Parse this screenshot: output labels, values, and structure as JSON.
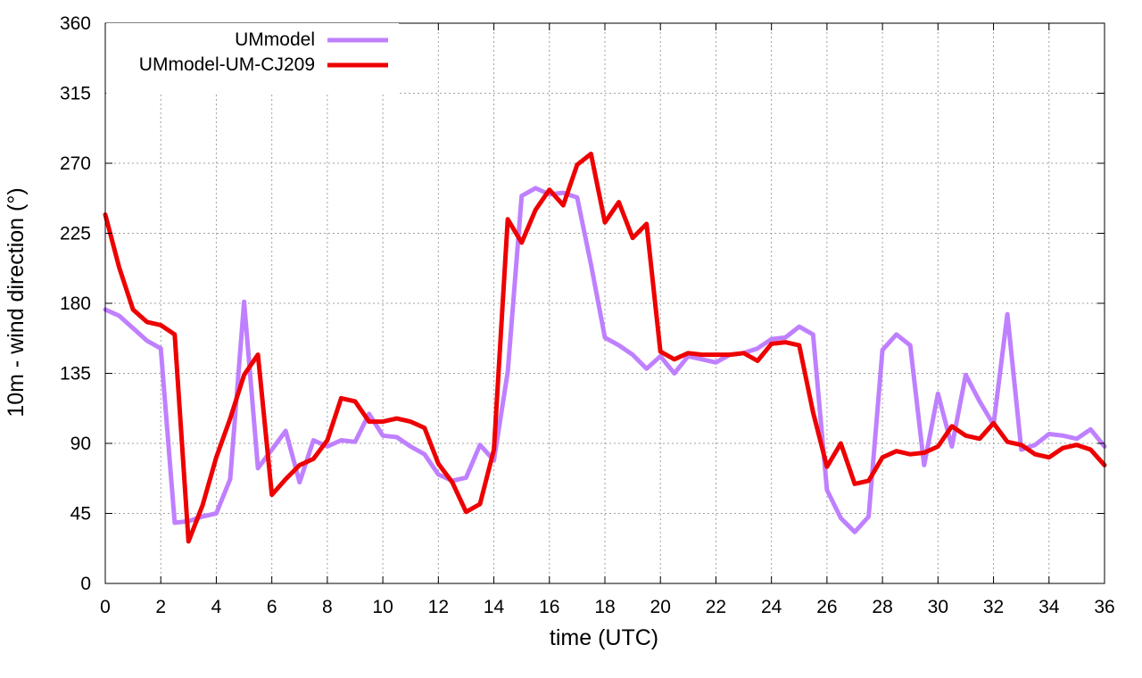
{
  "chart_data": {
    "type": "line",
    "title": "",
    "xlabel": "time (UTC)",
    "ylabel": "10m - wind direction (°)",
    "xlim": [
      0,
      36
    ],
    "ylim": [
      0,
      360
    ],
    "xticks": [
      0,
      2,
      4,
      6,
      8,
      10,
      12,
      14,
      16,
      18,
      20,
      22,
      24,
      26,
      28,
      30,
      32,
      34,
      36
    ],
    "yticks": [
      0,
      45,
      90,
      135,
      180,
      225,
      270,
      315,
      360
    ],
    "grid": true,
    "legend_position": "top-left",
    "series": [
      {
        "name": "UMmodel",
        "color": "#bf80ff",
        "x": [
          0,
          0.5,
          1,
          1.5,
          2,
          2.5,
          3,
          3.5,
          4,
          4.5,
          5,
          5.5,
          6,
          6.5,
          7,
          7.5,
          8,
          8.5,
          9,
          9.5,
          10,
          10.5,
          11,
          11.5,
          12,
          12.5,
          13,
          13.5,
          14,
          14.5,
          15,
          15.5,
          16,
          16.5,
          17,
          17.5,
          18,
          18.5,
          19,
          19.5,
          20,
          20.5,
          21,
          21.5,
          22,
          22.5,
          23,
          23.5,
          24,
          24.5,
          25,
          25.5,
          26,
          26.5,
          27,
          27.5,
          28,
          28.5,
          29,
          29.5,
          30,
          30.5,
          31,
          31.5,
          32,
          32.5,
          33,
          33.5,
          34,
          34.5,
          35,
          35.5,
          36
        ],
        "y": [
          176,
          172,
          164,
          156,
          151,
          39,
          40,
          43,
          45,
          67,
          181,
          74,
          86,
          98,
          65,
          92,
          88,
          92,
          91,
          109,
          95,
          94,
          88,
          83,
          70,
          66,
          68,
          89,
          79,
          136,
          249,
          254,
          250,
          251,
          248,
          205,
          158,
          153,
          147,
          138,
          146,
          135,
          146,
          144,
          142,
          147,
          148,
          151,
          157,
          158,
          165,
          160,
          60,
          42,
          33,
          43,
          150,
          160,
          153,
          76,
          122,
          88,
          134,
          117,
          102,
          173,
          86,
          89,
          96,
          95,
          93,
          99,
          88
        ]
      },
      {
        "name": "UMmodel-UM-CJ209",
        "color": "#ee0000",
        "x": [
          0,
          0.5,
          1,
          1.5,
          2,
          2.5,
          3,
          3.5,
          4,
          4.5,
          5,
          5.5,
          6,
          6.5,
          7,
          7.5,
          8,
          8.5,
          9,
          9.5,
          10,
          10.5,
          11,
          11.5,
          12,
          12.5,
          13,
          13.5,
          14,
          14.5,
          15,
          15.5,
          16,
          16.5,
          17,
          17.5,
          18,
          18.5,
          19,
          19.5,
          20,
          20.5,
          21,
          21.5,
          22,
          22.5,
          23,
          23.5,
          24,
          24.5,
          25,
          25.5,
          26,
          26.5,
          27,
          27.5,
          28,
          28.5,
          29,
          29.5,
          30,
          30.5,
          31,
          31.5,
          32,
          32.5,
          33,
          33.5,
          34,
          34.5,
          35,
          35.5,
          36
        ],
        "y": [
          237,
          203,
          176,
          168,
          166,
          160,
          27,
          50,
          81,
          106,
          134,
          147,
          57,
          67,
          76,
          80,
          92,
          119,
          117,
          104,
          104,
          106,
          104,
          100,
          77,
          65,
          46,
          51,
          86,
          234,
          219,
          240,
          253,
          243,
          269,
          276,
          232,
          245,
          222,
          231,
          149,
          144,
          148,
          147,
          147,
          147,
          148,
          143,
          154,
          155,
          153,
          110,
          75,
          90,
          64,
          66,
          81,
          85,
          83,
          84,
          88,
          101,
          95,
          93,
          103,
          91,
          89,
          83,
          81,
          87,
          89,
          86,
          76
        ]
      }
    ]
  }
}
